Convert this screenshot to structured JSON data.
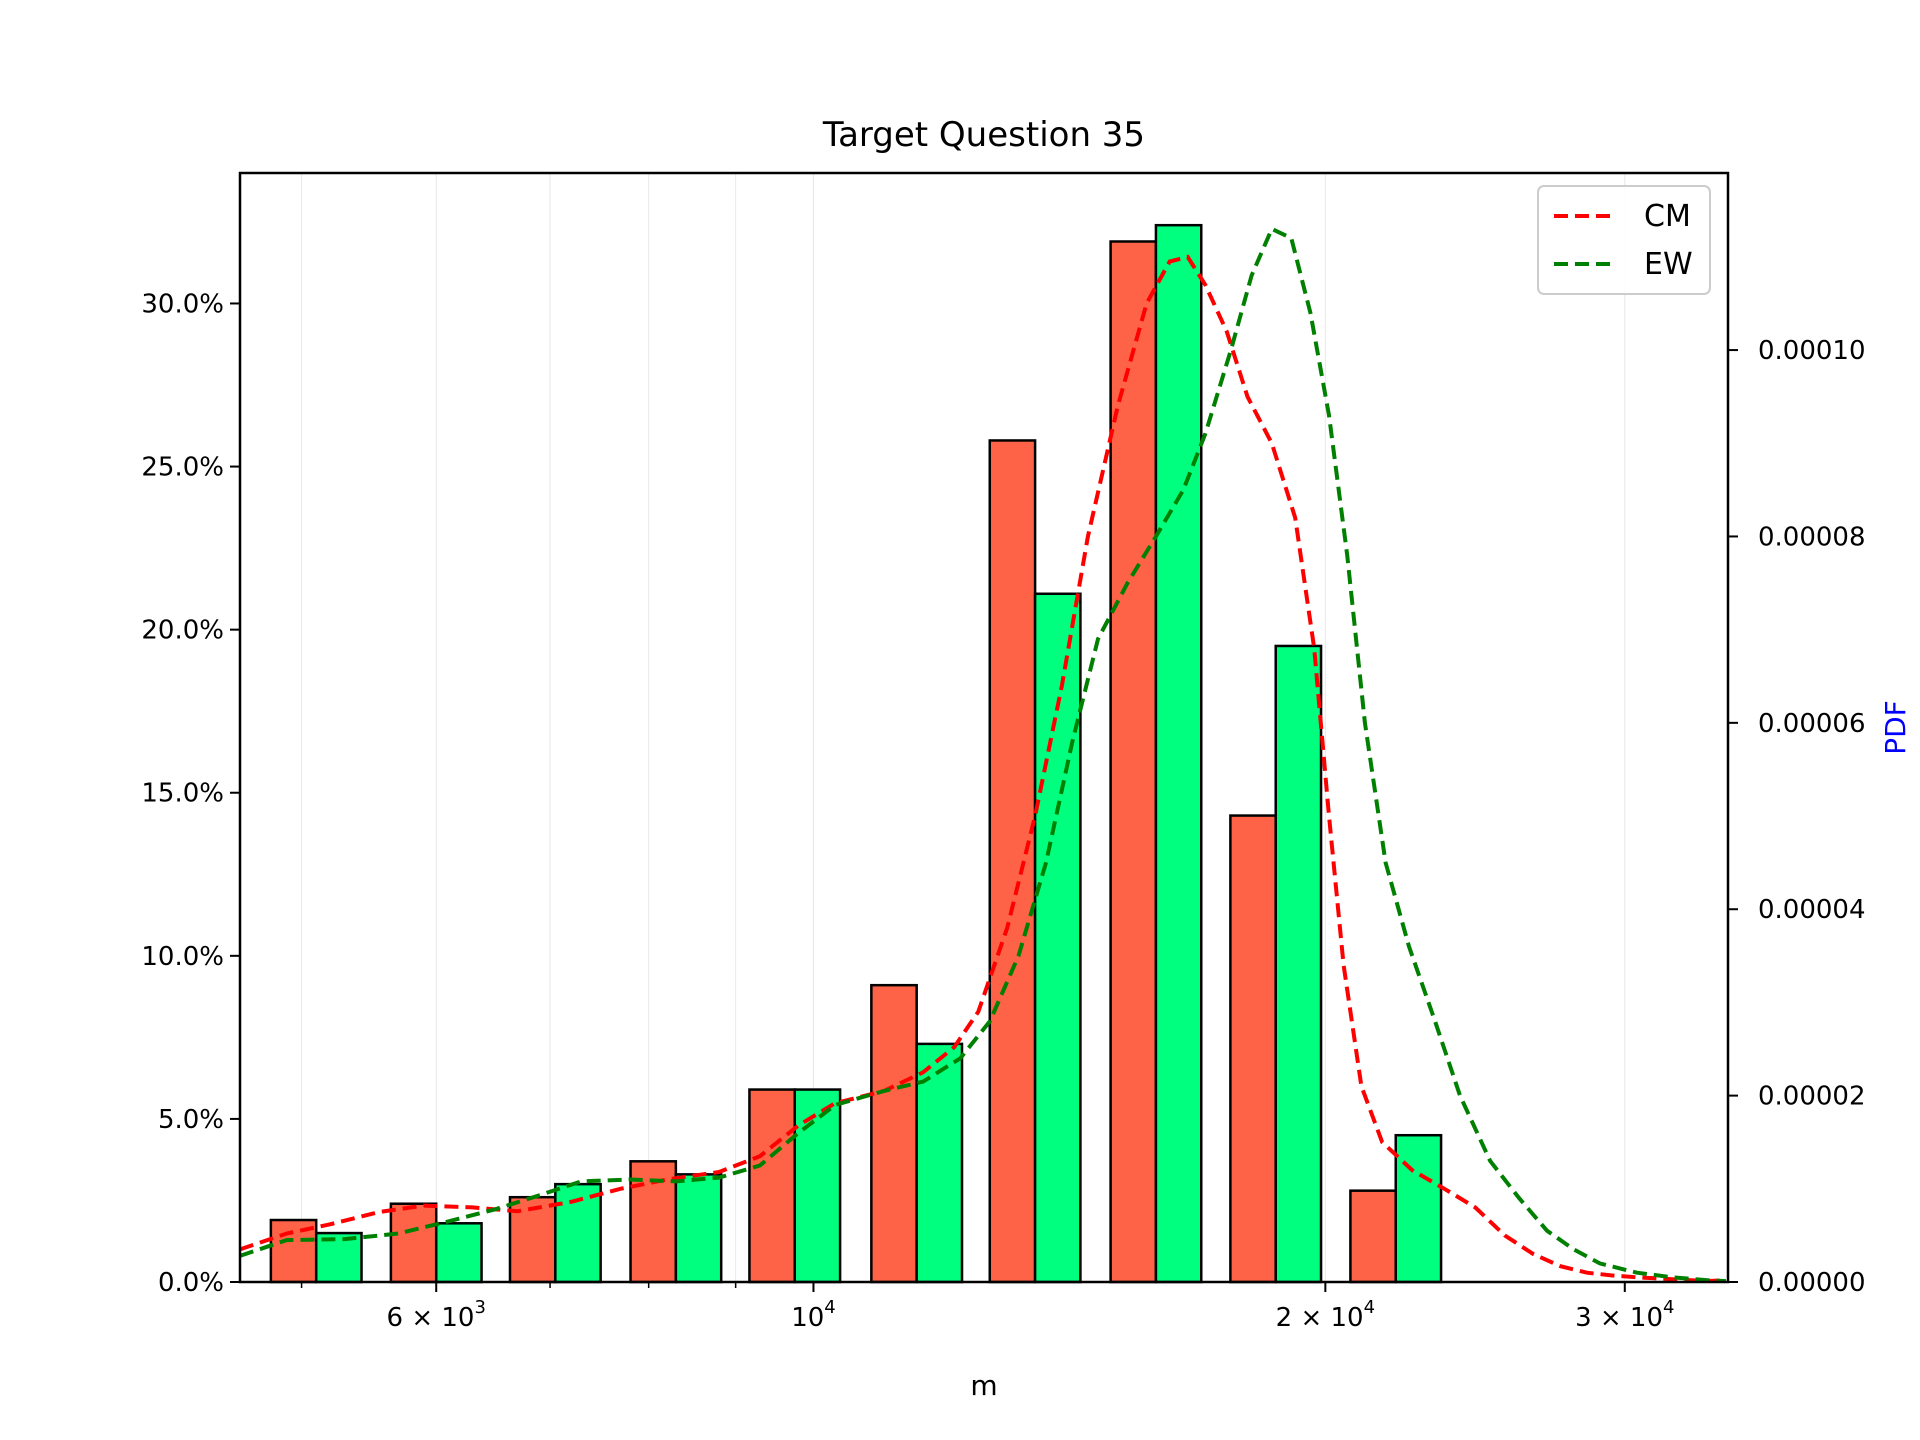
{
  "chart_data": {
    "type": "bar",
    "title": "Target Question 35",
    "xlabel": "m",
    "ylabel": "",
    "y2label": "PDF",
    "x_scale": "log",
    "xlim": [
      4600,
      34500
    ],
    "ylim": [
      0,
      0.34
    ],
    "y2lim": [
      0,
      0.000119
    ],
    "x_ticks": [
      {
        "value": 6000,
        "base": "6 × 10",
        "exp": "3"
      },
      {
        "value": 10000,
        "base": "10",
        "exp": "4"
      },
      {
        "value": 20000,
        "base": "2 × 10",
        "exp": "4"
      },
      {
        "value": 30000,
        "base": "3 × 10",
        "exp": "4"
      }
    ],
    "x_minor_ticks": [
      5000,
      7000,
      8000,
      9000,
      40000
    ],
    "y_ticks": [
      {
        "value": 0.0,
        "label": "0.0%"
      },
      {
        "value": 0.05,
        "label": "5.0%"
      },
      {
        "value": 0.1,
        "label": "10.0%"
      },
      {
        "value": 0.15,
        "label": "15.0%"
      },
      {
        "value": 0.2,
        "label": "20.0%"
      },
      {
        "value": 0.25,
        "label": "25.0%"
      },
      {
        "value": 0.3,
        "label": "30.0%"
      }
    ],
    "y2_ticks": [
      {
        "value": 0.0,
        "label": "0.00000"
      },
      {
        "value": 2e-05,
        "label": "0.00002"
      },
      {
        "value": 4e-05,
        "label": "0.00004"
      },
      {
        "value": 6e-05,
        "label": "0.00006"
      },
      {
        "value": 8e-05,
        "label": "0.00008"
      },
      {
        "value": 0.0001,
        "label": "0.00010"
      }
    ],
    "bin_centers": [
      5100,
      6000,
      7050,
      8300,
      9750,
      11500,
      13500,
      15900,
      18700,
      22000,
      25900
    ],
    "bin_width_log_ratio": 1.0633,
    "series": [
      {
        "name": "CM",
        "bar_color": "#ff6347",
        "line_color": "#ff0000",
        "values": [
          0.019,
          0.024,
          0.026,
          0.037,
          0.059,
          0.091,
          0.258,
          0.319,
          0.143,
          0.028,
          0.0
        ]
      },
      {
        "name": "EW",
        "bar_color": "#00ff7f",
        "line_color": "#008000",
        "values": [
          0.015,
          0.018,
          0.03,
          0.033,
          0.059,
          0.073,
          0.211,
          0.324,
          0.195,
          0.045,
          0.0
        ]
      }
    ],
    "bar_values_fix": {
      "CM": [
        0.019,
        0.024,
        0.026,
        0.037,
        0.059,
        0.091,
        0.258,
        0.319,
        0.143,
        0.028
      ],
      "EW": [
        0.015,
        0.018,
        0.03,
        0.033,
        0.059,
        0.073,
        0.211,
        0.324,
        0.195,
        0.045
      ]
    },
    "pdf_curves": [
      {
        "name": "CM",
        "color": "#ff0000",
        "points": [
          [
            4600,
            3.5e-06
          ],
          [
            4900,
            5.2e-06
          ],
          [
            5200,
            6.2e-06
          ],
          [
            5550,
            7.5e-06
          ],
          [
            5900,
            8.2e-06
          ],
          [
            6300,
            8e-06
          ],
          [
            6700,
            7.6e-06
          ],
          [
            7200,
            8.6e-06
          ],
          [
            7700,
            1e-05
          ],
          [
            8200,
            1.1e-05
          ],
          [
            8800,
            1.18e-05
          ],
          [
            9300,
            1.35e-05
          ],
          [
            9800,
            1.68e-05
          ],
          [
            10300,
            1.92e-05
          ],
          [
            11000,
            2.05e-05
          ],
          [
            11600,
            2.25e-05
          ],
          [
            12100,
            2.52e-05
          ],
          [
            12500,
            2.9e-05
          ],
          [
            13000,
            3.8e-05
          ],
          [
            13500,
            5e-05
          ],
          [
            14000,
            6.4e-05
          ],
          [
            14500,
            8e-05
          ],
          [
            15100,
            9.4e-05
          ],
          [
            15700,
            0.000105
          ],
          [
            16200,
            0.0001095
          ],
          [
            16600,
            0.00011
          ],
          [
            17000,
            0.000107
          ],
          [
            17500,
            0.000102
          ],
          [
            18000,
            9.5e-05
          ],
          [
            18600,
            9e-05
          ],
          [
            19200,
            8.2e-05
          ],
          [
            19700,
            6.8e-05
          ],
          [
            20100,
            5e-05
          ],
          [
            20500,
            3.4e-05
          ],
          [
            21000,
            2.1e-05
          ],
          [
            21600,
            1.5e-05
          ],
          [
            22500,
            1.2e-05
          ],
          [
            23500,
            1e-05
          ],
          [
            24500,
            8e-06
          ],
          [
            25500,
            5e-06
          ],
          [
            26500,
            3e-06
          ],
          [
            27500,
            1.7e-06
          ],
          [
            28500,
            1e-06
          ],
          [
            29500,
            7e-07
          ],
          [
            30500,
            5e-07
          ],
          [
            32000,
            3e-07
          ],
          [
            33500,
            1e-07
          ],
          [
            34400,
            2e-07
          ]
        ]
      },
      {
        "name": "EW",
        "color": "#008000",
        "points": [
          [
            4600,
            2.8e-06
          ],
          [
            4900,
            4.5e-06
          ],
          [
            5300,
            4.6e-06
          ],
          [
            5700,
            5.2e-06
          ],
          [
            6100,
            6.5e-06
          ],
          [
            6500,
            7.8e-06
          ],
          [
            6900,
            9.3e-06
          ],
          [
            7300,
            1.08e-05
          ],
          [
            7800,
            1.1e-05
          ],
          [
            8300,
            1.08e-05
          ],
          [
            8800,
            1.12e-05
          ],
          [
            9300,
            1.25e-05
          ],
          [
            9800,
            1.6e-05
          ],
          [
            10300,
            1.9e-05
          ],
          [
            11000,
            2.05e-05
          ],
          [
            11600,
            2.15e-05
          ],
          [
            12200,
            2.4e-05
          ],
          [
            12700,
            2.8e-05
          ],
          [
            13200,
            3.5e-05
          ],
          [
            13700,
            4.5e-05
          ],
          [
            14200,
            5.8e-05
          ],
          [
            14700,
            6.9e-05
          ],
          [
            15300,
            7.5e-05
          ],
          [
            15900,
            8e-05
          ],
          [
            16500,
            8.5e-05
          ],
          [
            17000,
            9.1e-05
          ],
          [
            17600,
            0.0001
          ],
          [
            18100,
            0.000108
          ],
          [
            18600,
            0.000113
          ],
          [
            19100,
            0.000112
          ],
          [
            19600,
            0.000104
          ],
          [
            20100,
            9.3e-05
          ],
          [
            20600,
            7.8e-05
          ],
          [
            21100,
            6e-05
          ],
          [
            21700,
            4.5e-05
          ],
          [
            22400,
            3.6e-05
          ],
          [
            23200,
            2.8e-05
          ],
          [
            24000,
            2e-05
          ],
          [
            25000,
            1.3e-05
          ],
          [
            26000,
            9e-06
          ],
          [
            27000,
            5.5e-06
          ],
          [
            28000,
            3.5e-06
          ],
          [
            29000,
            2e-06
          ],
          [
            30500,
            1e-06
          ],
          [
            32000,
            5e-07
          ],
          [
            33500,
            2e-07
          ],
          [
            34400,
            1e-07
          ]
        ]
      }
    ],
    "legend": {
      "placement": "top-right",
      "entries": [
        "CM",
        "EW"
      ]
    },
    "grid": "x-minor-light"
  }
}
